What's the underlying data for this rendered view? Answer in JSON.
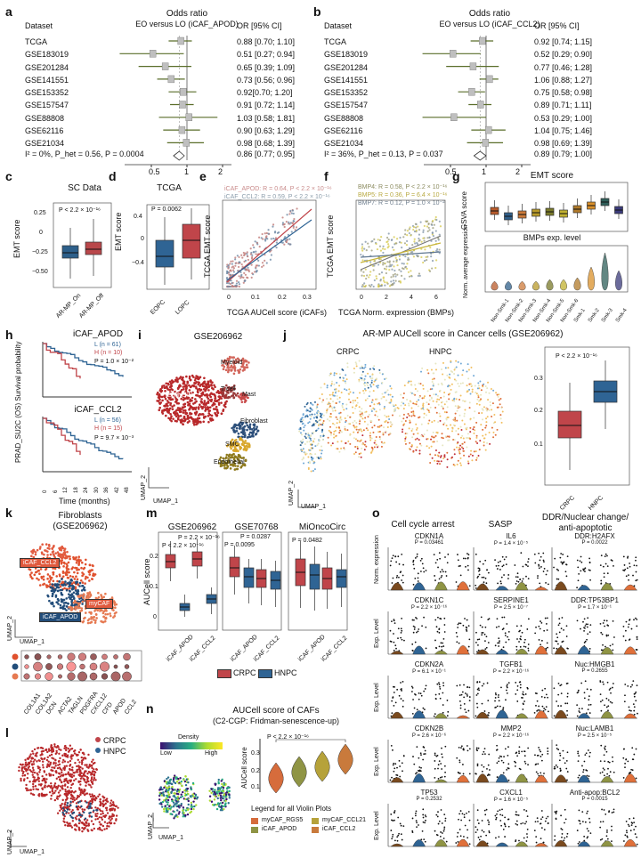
{
  "panels": {
    "a": {
      "letter": "a",
      "col_dataset": "Dataset",
      "col_or": "Odds ratio",
      "col_or_sub": "EO versus LO (iCAF_APOD)",
      "col_ci": "OR [95% CI]",
      "datasets": [
        "TCGA",
        "GSE183019",
        "GSE201284",
        "GSE141551",
        "GSE153352",
        "GSE157547",
        "GSE88808",
        "GSE62116",
        "GSE21034"
      ],
      "or_values": [
        0.88,
        0.51,
        0.65,
        0.73,
        0.92,
        0.91,
        1.03,
        0.9,
        0.98
      ],
      "ci_low": [
        0.7,
        0.27,
        0.39,
        0.56,
        0.7,
        0.72,
        0.58,
        0.63,
        0.68
      ],
      "ci_high": [
        1.1,
        0.94,
        1.09,
        0.96,
        1.2,
        1.14,
        1.81,
        1.29,
        1.39
      ],
      "ci_text": [
        "0.88 [0.70; 1.10]",
        "0.51 [0.27; 0.94]",
        "0.65 [0.39; 1.09]",
        "0.73  [0.56; 0.96]",
        "0.92[0.70; 1.20]",
        "0.91  [0.72; 1.14]",
        "1.03  [0.58; 1.81]",
        "0.90 [0.63; 1.29]",
        "0.98 [0.68; 1.39]"
      ],
      "summary_stats": "I² = 0%, P_het = 0.56, P = 0.0004",
      "summary_or": 0.86,
      "summary_low": 0.77,
      "summary_high": 0.95,
      "summary_text": "0.86 [0.77; 0.95]",
      "ticks": [
        "0.5",
        "1",
        "2"
      ]
    },
    "b": {
      "letter": "b",
      "col_dataset": "Dataset",
      "col_or": "Odds ratio",
      "col_or_sub": "EO versus LO (iCAF_CCL2)",
      "col_ci": "OR [95% CI]",
      "datasets": [
        "TCGA",
        "GSE183019",
        "GSE201284",
        "GSE141551",
        "GSE153352",
        "GSE157547",
        "GSE88808",
        "GSE62116",
        "GSE21034"
      ],
      "or_values": [
        0.92,
        0.52,
        0.77,
        1.06,
        0.75,
        0.89,
        0.53,
        1.04,
        0.98
      ],
      "ci_low": [
        0.74,
        0.29,
        0.46,
        0.88,
        0.58,
        0.71,
        0.29,
        0.75,
        0.69
      ],
      "ci_high": [
        1.15,
        0.9,
        1.28,
        1.27,
        0.98,
        1.11,
        1.0,
        1.46,
        1.39
      ],
      "ci_text": [
        "0.92 [0.74; 1.15]",
        "0.52 [0.29; 0.90]",
        "0.77 [0.46; 1.28]",
        "1.06 [0.88; 1.27]",
        "0.75 [0.58; 0.98]",
        "0.89 [0.71; 1.11]",
        "0.53 [0.29; 1.00]",
        "1.04 [0.75; 1.46]",
        "0.98 [0.69; 1.39]"
      ],
      "summary_stats": "I² = 36%, P_het = 0.13, P = 0.037",
      "summary_or": 0.89,
      "summary_low": 0.79,
      "summary_high": 1.0,
      "summary_text": "0.89 [0.79; 1.00]",
      "ticks": [
        "0.5",
        "1",
        "2"
      ]
    },
    "c": {
      "letter": "c",
      "title": "SC Data",
      "ylabel": "EMT score",
      "pvalue": "P < 2.2 × 10⁻¹⁶",
      "yticks": [
        "0.25",
        "0",
        "−0.25",
        "−0.50"
      ],
      "groups": [
        "AR-MP_On",
        "AR-MP_Off"
      ],
      "colors": [
        "#2d5f8a",
        "#b9474a"
      ]
    },
    "d": {
      "letter": "d",
      "title": "TCGA",
      "ylabel": "EMT score",
      "pvalue": "P = 0.0062",
      "yticks": [
        "0.4",
        "0",
        "−0.4"
      ],
      "groups": [
        "EOPC",
        "LOPC"
      ]
    },
    "e": {
      "letter": "e",
      "ylabel": "TCGA EMT score",
      "xlabel": "TCGA AUCell score (iCAFs)",
      "stat1": "iCAF_APOD: R = 0.64, P < 2.2 × 10⁻¹⁶",
      "stat2": "iCAF_CCL2: R = 0.59, P < 2.2 × 10⁻¹⁶",
      "xticks": [
        "0",
        "0.1",
        "0.2",
        "0.3"
      ],
      "yticks": [
        "0.4",
        "0",
        "−0.4"
      ]
    },
    "f": {
      "letter": "f",
      "ylabel": "TCGA EMT score",
      "xlabel": "TCGA Norm. expression (BMPs)",
      "stat1": "BMP4: R = 0.58, P < 2.2 × 10⁻¹⁶",
      "stat2": "BMP5: R = 0.36, P = 6.4 × 10⁻¹⁶",
      "stat3": "BMP7: R = 0.12, P = 1.0 × 10⁻²",
      "xticks": [
        "0",
        "2",
        "4",
        "6"
      ],
      "yticks": [
        "0.4",
        "0.2",
        "0",
        "−0.2",
        "−0.4"
      ]
    },
    "g": {
      "letter": "g",
      "title1": "EMT score",
      "ylabel1": "GSVA score",
      "title2": "BMPs exp. level",
      "ylabel2": "Norm. average expression",
      "categories": [
        "Non-Smk-1",
        "Non-Smk-2",
        "Non-Smk-3",
        "Non-Smk-4",
        "Non-Smk-5",
        "Non-Smk-6",
        "Smk-1",
        "Smk-2",
        "Smk-3",
        "Smk-4"
      ]
    },
    "h": {
      "letter": "h",
      "ylabel": "PRAD_SU2C (OS) Survival probability",
      "xlabel": "Time (months)",
      "plot1_title": "iCAF_APOD",
      "plot1_legend": [
        "L (n = 61)",
        "H (n = 10)"
      ],
      "plot1_p": "P = 1.0 × 10⁻²",
      "plot2_title": "iCAF_CCL2",
      "plot2_legend": [
        "L (n = 56)",
        "H (n = 15)"
      ],
      "plot2_p": "P = 9.7 × 10⁻³",
      "xticks": [
        "0",
        "6",
        "12",
        "18",
        "24",
        "30",
        "36",
        "42",
        "48"
      ]
    },
    "i": {
      "letter": "i",
      "title": "GSE206962",
      "clusters": [
        "Myeloid",
        "T cell",
        "Mast",
        "Epithelial",
        "Fibroblast",
        "SMC",
        "Endothelial"
      ],
      "axis_x": "UMAP_1",
      "axis_y": "UMAP_2"
    },
    "j": {
      "letter": "j",
      "title": "AR-MP AUCell score in Cancer cells (GSE206962)",
      "sub1": "CRPC",
      "sub2": "HNPC",
      "pvalue": "P < 2.2 × 10⁻¹⁶",
      "yticks": [
        "0.3",
        "0.2",
        "0.1"
      ],
      "groups": [
        "CRPC",
        "HNPC"
      ],
      "axis_x": "UMAP_1",
      "axis_y": "UMAP_2"
    },
    "k": {
      "letter": "k",
      "title": "Fibroblasts",
      "subtitle": "(GSE206962)",
      "labels": [
        "iCAF_CCL2",
        "myCAF",
        "iCAF_APOD"
      ],
      "genes": [
        "COL1A1",
        "COL1A2",
        "DCN",
        "ACTA2",
        "TAGLN",
        "PDGFRA",
        "CXCL12",
        "CFD",
        "APOD",
        "CCL2"
      ],
      "axis_x": "UMAP_1",
      "axis_y": "UMAP_2"
    },
    "l": {
      "letter": "l",
      "legend": [
        "CRPC",
        "HNPC"
      ],
      "axis_x": "UMAP_1",
      "axis_y": "UMAP_2"
    },
    "m": {
      "letter": "m",
      "ylabel": "AUCell score",
      "plots": [
        {
          "title": "GSE206962",
          "p_top": "P = 2.2 × 10⁻¹⁶",
          "p_bottom": "P < 2.2 × 10⁻¹⁶",
          "xcats": [
            "iCAF_APOD",
            "iCAF_CCL2"
          ]
        },
        {
          "title": "GSE70768",
          "p_top": "P = 0.0287",
          "p_bottom": "P = 0.0095",
          "xcats": [
            "iCAF_APOD",
            "iCAF_CCL2"
          ]
        },
        {
          "title": "MiOncoCirc",
          "p_top": "",
          "p_bottom": "P = 0.0482",
          "xcats": [
            "iCAF_APOD",
            "iCAF_CCL2"
          ]
        }
      ],
      "yticks": [
        "0.2",
        "0.1",
        "0"
      ],
      "legend": [
        "CRPC",
        "HNPC"
      ]
    },
    "n": {
      "letter": "n",
      "title": "AUCell score of CAFs",
      "subtitle": "(C2-CGP: Fridman-senescence-up)",
      "pvalue": "P < 2.2 × 10⁻¹⁶",
      "ylabel": "AUCell score",
      "yticks": [
        "0.3",
        "0.2",
        "0.1"
      ],
      "density_label": "Density",
      "density_low": "Low",
      "density_high": "High",
      "legend_title": "Legend for all Violin Plots",
      "legend_items": [
        "myCAF_RGS5",
        "myCAF_CCL21",
        "iCAF_APOD",
        "iCAF_CCL2"
      ],
      "axis_x": "UMAP_1",
      "axis_y": "UMAP_2"
    },
    "o": {
      "letter": "o",
      "col_titles": [
        "Cell cycle arrest",
        "SASP",
        "DDR/Nuclear change/ anti-apoptotic"
      ],
      "rows": [
        [
          {
            "gene": "CDKN1A",
            "p": "P = 0.03461"
          },
          {
            "gene": "IL6",
            "p": "P = 1.4 × 10⁻⁵"
          },
          {
            "gene": "DDR:H2AFX",
            "p": "P = 0.0022"
          }
        ],
        [
          {
            "gene": "CDKN1C",
            "p": "P = 2.2 × 10⁻¹⁶"
          },
          {
            "gene": "SERPINE1",
            "p": "P = 2.5 × 10⁻⁷"
          },
          {
            "gene": "DDR:TP53BP1",
            "p": "P = 1.7 × 10⁻¹"
          }
        ],
        [
          {
            "gene": "CDKN2A",
            "p": "P = 6.1 × 10⁻¹"
          },
          {
            "gene": "TGFB1",
            "p": "P = 2.2 × 10⁻¹⁶"
          },
          {
            "gene": "Nuc:HMGB1",
            "p": "P = 0.2655"
          }
        ],
        [
          {
            "gene": "CDKN2B",
            "p": "P = 2.6 × 10⁻⁶"
          },
          {
            "gene": "MMP2",
            "p": "P = 2.2 × 10⁻¹⁶"
          },
          {
            "gene": "Nuc:LAMB1",
            "p": "P = 2.5 × 10⁻⁵"
          }
        ],
        [
          {
            "gene": "TP53",
            "p": "P = 0.2532"
          },
          {
            "gene": "CXCL1",
            "p": "P = 1.6 × 10⁻⁵"
          },
          {
            "gene": "Anti-apop:BCL2",
            "p": "P = 0.0015"
          }
        ]
      ],
      "ylabel_top": "Norm. expression",
      "ylabel_rest": "Exp. Level"
    }
  },
  "chart_data": [
    {
      "type": "scatter",
      "title": "Odds ratio EO versus LO (iCAF_APOD)",
      "categories": [
        "TCGA",
        "GSE183019",
        "GSE201284",
        "GSE141551",
        "GSE153352",
        "GSE157547",
        "GSE88808",
        "GSE62116",
        "GSE21034"
      ],
      "values": [
        0.88,
        0.51,
        0.65,
        0.73,
        0.92,
        0.91,
        1.03,
        0.9,
        0.98
      ],
      "ci_low": [
        0.7,
        0.27,
        0.39,
        0.56,
        0.7,
        0.72,
        0.58,
        0.63,
        0.68
      ],
      "ci_high": [
        1.1,
        0.94,
        1.09,
        0.96,
        1.2,
        1.14,
        1.81,
        1.29,
        1.39
      ],
      "summary": 0.86,
      "xlim": [
        0.5,
        2
      ],
      "log_scale": true
    },
    {
      "type": "scatter",
      "title": "Odds ratio EO versus LO (iCAF_CCL2)",
      "categories": [
        "TCGA",
        "GSE183019",
        "GSE201284",
        "GSE141551",
        "GSE153352",
        "GSE157547",
        "GSE88808",
        "GSE62116",
        "GSE21034"
      ],
      "values": [
        0.92,
        0.52,
        0.77,
        1.06,
        0.75,
        0.89,
        0.53,
        1.04,
        0.98
      ],
      "ci_low": [
        0.74,
        0.29,
        0.46,
        0.88,
        0.58,
        0.71,
        0.29,
        0.75,
        0.69
      ],
      "ci_high": [
        1.15,
        0.9,
        1.28,
        1.27,
        0.98,
        1.11,
        1.0,
        1.46,
        1.39
      ],
      "summary": 0.89,
      "xlim": [
        0.5,
        2
      ],
      "log_scale": true
    }
  ],
  "colors": {
    "crpc": "#c0454a",
    "hnpc": "#2f6494",
    "forest_line": "#5a6e2a",
    "forest_box": "#bfbfbf"
  }
}
